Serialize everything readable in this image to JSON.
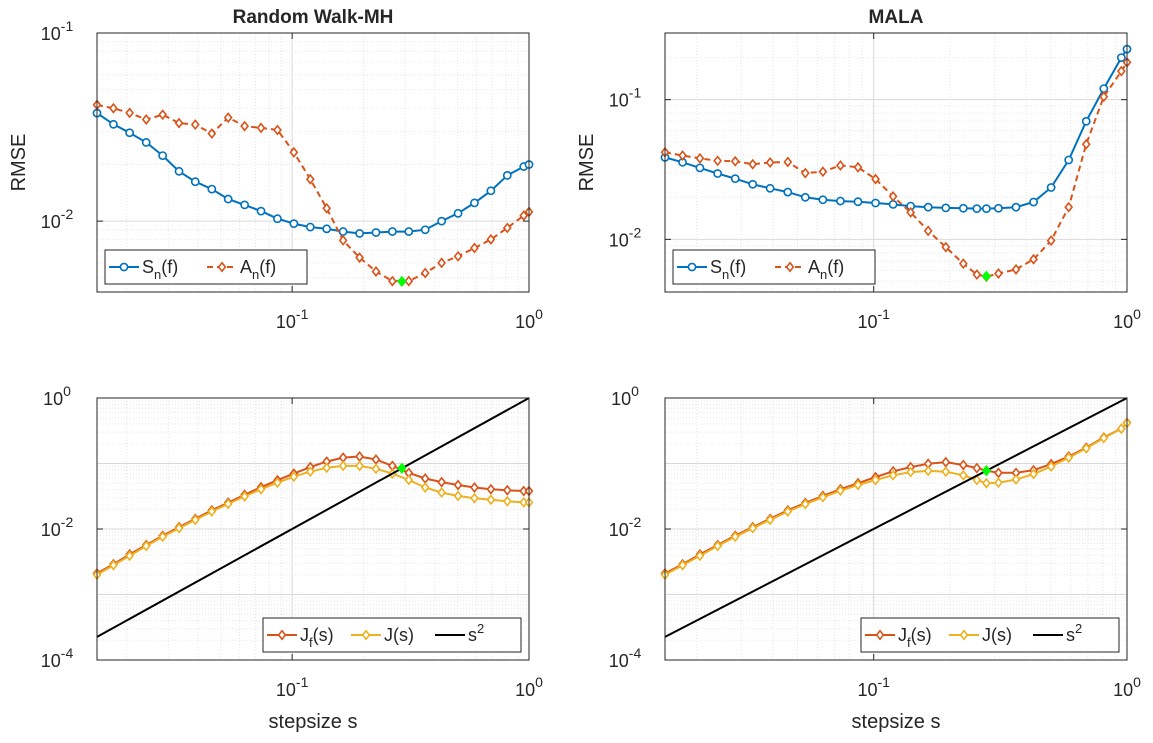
{
  "chart_data": [
    {
      "type": "line",
      "id": "rwmh_rmse",
      "title": "Random Walk-MH",
      "xlabel": "",
      "ylabel": "RMSE",
      "xscale": "log",
      "yscale": "log",
      "xlim": [
        0.015,
        1.0
      ],
      "ylim": [
        0.0042,
        0.1
      ],
      "xticks": [
        {
          "v": 0.1,
          "b": "10",
          "e": "-1"
        },
        {
          "v": 1,
          "b": "10",
          "e": "0"
        }
      ],
      "yticks": [
        {
          "v": 0.01,
          "b": "10",
          "e": "-2"
        },
        {
          "v": 0.1,
          "b": "10",
          "e": "-1"
        }
      ],
      "grid": true,
      "legend": {
        "placement": "bottom-left",
        "orientation": "horizontal"
      },
      "series": [
        {
          "name": "S_n(f)",
          "label_main": "S",
          "label_sub": "n",
          "label_tail": "(f)",
          "color": "#0072BD",
          "marker": "circle",
          "dash": false,
          "x": [
            0.015,
            0.0176,
            0.0206,
            0.0242,
            0.0284,
            0.0333,
            0.039,
            0.0458,
            0.0537,
            0.063,
            0.0739,
            0.0867,
            0.1017,
            0.1193,
            0.1399,
            0.1641,
            0.1926,
            0.2259,
            0.265,
            0.3108,
            0.3646,
            0.4277,
            0.5017,
            0.5885,
            0.6903,
            0.8098,
            0.95,
            1.0
          ],
          "y": [
            0.0375,
            0.0327,
            0.0295,
            0.0262,
            0.0223,
            0.0184,
            0.0162,
            0.0148,
            0.0131,
            0.0122,
            0.0113,
            0.0103,
            0.0097,
            0.0093,
            0.0091,
            0.0088,
            0.0086,
            0.0087,
            0.0088,
            0.0088,
            0.009,
            0.01,
            0.011,
            0.0125,
            0.0145,
            0.0175,
            0.0195,
            0.02
          ]
        },
        {
          "name": "A_n(f)",
          "label_main": "A",
          "label_sub": "n",
          "label_tail": "(f)",
          "color": "#D95319",
          "marker": "diamond",
          "dash": true,
          "x": [
            0.015,
            0.0176,
            0.0206,
            0.0242,
            0.0284,
            0.0333,
            0.039,
            0.0458,
            0.0537,
            0.063,
            0.0739,
            0.0867,
            0.1017,
            0.1193,
            0.1399,
            0.1641,
            0.1926,
            0.2259,
            0.265,
            0.3108,
            0.3646,
            0.4277,
            0.5017,
            0.5885,
            0.6903,
            0.8098,
            0.95,
            1.0
          ],
          "y": [
            0.0415,
            0.0398,
            0.0376,
            0.0347,
            0.0368,
            0.0332,
            0.0326,
            0.0292,
            0.0355,
            0.032,
            0.0313,
            0.0305,
            0.0232,
            0.0167,
            0.0117,
            0.0079,
            0.0064,
            0.0054,
            0.0048,
            0.0048,
            0.0053,
            0.006,
            0.0065,
            0.0072,
            0.008,
            0.0092,
            0.0107,
            0.0112
          ]
        }
      ],
      "highlight": {
        "x": 0.2906,
        "y": 0.00478,
        "color": "#00FF00"
      }
    },
    {
      "type": "line",
      "id": "mala_rmse",
      "title": "MALA",
      "xlabel": "",
      "ylabel": "RMSE",
      "xscale": "log",
      "yscale": "log",
      "xlim": [
        0.015,
        1.0
      ],
      "ylim": [
        0.0042,
        0.3
      ],
      "xticks": [
        {
          "v": 0.1,
          "b": "10",
          "e": "-1"
        },
        {
          "v": 1,
          "b": "10",
          "e": "0"
        }
      ],
      "yticks": [
        {
          "v": 0.01,
          "b": "10",
          "e": "-2"
        },
        {
          "v": 0.1,
          "b": "10",
          "e": "-1"
        }
      ],
      "grid": true,
      "legend": {
        "placement": "bottom-left",
        "orientation": "horizontal"
      },
      "series": [
        {
          "name": "S_n(f)",
          "label_main": "S",
          "label_sub": "n",
          "label_tail": "(f)",
          "color": "#0072BD",
          "marker": "circle",
          "dash": false,
          "x": [
            0.015,
            0.0176,
            0.0206,
            0.0242,
            0.0284,
            0.0333,
            0.039,
            0.0458,
            0.0537,
            0.063,
            0.0739,
            0.0867,
            0.1017,
            0.1193,
            0.1399,
            0.1641,
            0.1926,
            0.2259,
            0.2554,
            0.2786,
            0.3108,
            0.3646,
            0.4277,
            0.5017,
            0.5885,
            0.6903,
            0.8098,
            0.95,
            1.0
          ],
          "y": [
            0.0386,
            0.0356,
            0.0325,
            0.0296,
            0.0272,
            0.0248,
            0.0232,
            0.0218,
            0.02,
            0.0192,
            0.0188,
            0.0186,
            0.0182,
            0.0178,
            0.0173,
            0.017,
            0.0168,
            0.0167,
            0.0166,
            0.0166,
            0.0167,
            0.017,
            0.0185,
            0.0235,
            0.037,
            0.07,
            0.12,
            0.2,
            0.23
          ]
        },
        {
          "name": "A_n(f)",
          "label_main": "A",
          "label_sub": "n",
          "label_tail": "(f)",
          "color": "#D95319",
          "marker": "diamond",
          "dash": true,
          "x": [
            0.015,
            0.0176,
            0.0206,
            0.0242,
            0.0284,
            0.0333,
            0.039,
            0.0458,
            0.0537,
            0.063,
            0.0739,
            0.0867,
            0.1017,
            0.1193,
            0.1399,
            0.1641,
            0.1926,
            0.2259,
            0.2554,
            0.2786,
            0.3108,
            0.3646,
            0.4277,
            0.5017,
            0.5885,
            0.6903,
            0.8098,
            0.95,
            1.0
          ],
          "y": [
            0.042,
            0.0398,
            0.038,
            0.0365,
            0.0362,
            0.0345,
            0.0355,
            0.0358,
            0.0298,
            0.0305,
            0.0338,
            0.0328,
            0.027,
            0.0203,
            0.0156,
            0.0115,
            0.0088,
            0.0067,
            0.0056,
            0.0054,
            0.0057,
            0.0061,
            0.0072,
            0.0098,
            0.017,
            0.048,
            0.105,
            0.16,
            0.185
          ]
        }
      ],
      "highlight": {
        "x": 0.2786,
        "y": 0.00545,
        "color": "#00FF00"
      }
    },
    {
      "type": "line",
      "id": "rwmh_j",
      "title": "",
      "xlabel": "stepsize s",
      "ylabel": "",
      "xscale": "log",
      "yscale": "log",
      "xlim": [
        0.015,
        1.0
      ],
      "ylim": [
        0.0001,
        1.0
      ],
      "xticks": [
        {
          "v": 0.1,
          "b": "10",
          "e": "-1"
        },
        {
          "v": 1,
          "b": "10",
          "e": "0"
        }
      ],
      "yticks": [
        {
          "v": 0.0001,
          "b": "10",
          "e": "-4"
        },
        {
          "v": 0.01,
          "b": "10",
          "e": "-2"
        },
        {
          "v": 1,
          "b": "10",
          "e": "0"
        }
      ],
      "grid": true,
      "legend": {
        "placement": "bottom-right",
        "orientation": "horizontal"
      },
      "series": [
        {
          "name": "J_f(s)",
          "label_main": "J",
          "label_sub": "f",
          "label_tail": "(s)",
          "color": "#D95319",
          "marker": "diamond",
          "dash": false,
          "x": [
            0.015,
            0.0176,
            0.0206,
            0.0242,
            0.0284,
            0.0333,
            0.039,
            0.0458,
            0.0537,
            0.063,
            0.0739,
            0.0867,
            0.1017,
            0.1193,
            0.1399,
            0.1641,
            0.1926,
            0.2259,
            0.265,
            0.3108,
            0.3646,
            0.4277,
            0.5017,
            0.5885,
            0.6903,
            0.8098,
            0.95,
            1.0
          ],
          "y": [
            0.0021,
            0.0029,
            0.0041,
            0.0057,
            0.0079,
            0.0107,
            0.0143,
            0.0193,
            0.0253,
            0.0333,
            0.0435,
            0.0555,
            0.07,
            0.088,
            0.107,
            0.123,
            0.128,
            0.115,
            0.092,
            0.072,
            0.059,
            0.052,
            0.047,
            0.043,
            0.0405,
            0.039,
            0.038,
            0.038
          ]
        },
        {
          "name": "J(s)",
          "label_main": "J",
          "label_sub": "",
          "label_tail": "(s)",
          "color": "#EDB120",
          "marker": "diamond",
          "dash": false,
          "x": [
            0.015,
            0.0176,
            0.0206,
            0.0242,
            0.0284,
            0.0333,
            0.039,
            0.0458,
            0.0537,
            0.063,
            0.0739,
            0.0867,
            0.1017,
            0.1193,
            0.1399,
            0.1641,
            0.1926,
            0.2259,
            0.265,
            0.3108,
            0.3646,
            0.4277,
            0.5017,
            0.5885,
            0.6903,
            0.8098,
            0.95,
            1.0
          ],
          "y": [
            0.002,
            0.0028,
            0.0039,
            0.0055,
            0.0076,
            0.0103,
            0.0138,
            0.0185,
            0.0242,
            0.0315,
            0.0405,
            0.051,
            0.063,
            0.075,
            0.086,
            0.092,
            0.092,
            0.083,
            0.07,
            0.056,
            0.043,
            0.036,
            0.032,
            0.0295,
            0.028,
            0.0265,
            0.0255,
            0.0255
          ]
        },
        {
          "name": "s^2",
          "label_main": "s",
          "label_sup": "2",
          "label_tail": "",
          "color": "#000000",
          "marker": "none",
          "dash": false,
          "x": [
            0.015,
            1.0
          ],
          "y": [
            0.000225,
            1.0
          ]
        }
      ],
      "highlight": {
        "x": 0.2906,
        "y": 0.0845,
        "color": "#00FF00"
      }
    },
    {
      "type": "line",
      "id": "mala_j",
      "title": "",
      "xlabel": "stepsize s",
      "ylabel": "",
      "xscale": "log",
      "yscale": "log",
      "xlim": [
        0.015,
        1.0
      ],
      "ylim": [
        0.0001,
        1.0
      ],
      "xticks": [
        {
          "v": 0.1,
          "b": "10",
          "e": "-1"
        },
        {
          "v": 1,
          "b": "10",
          "e": "0"
        }
      ],
      "yticks": [
        {
          "v": 0.0001,
          "b": "10",
          "e": "-4"
        },
        {
          "v": 0.01,
          "b": "10",
          "e": "-2"
        },
        {
          "v": 1,
          "b": "10",
          "e": "0"
        }
      ],
      "grid": true,
      "legend": {
        "placement": "bottom-right",
        "orientation": "horizontal"
      },
      "series": [
        {
          "name": "J_f(s)",
          "label_main": "J",
          "label_sub": "f",
          "label_tail": "(s)",
          "color": "#D95319",
          "marker": "diamond",
          "dash": false,
          "x": [
            0.015,
            0.0176,
            0.0206,
            0.0242,
            0.0284,
            0.0333,
            0.039,
            0.0458,
            0.0537,
            0.063,
            0.0739,
            0.0867,
            0.1017,
            0.1193,
            0.1399,
            0.1641,
            0.1926,
            0.2259,
            0.2554,
            0.2786,
            0.3108,
            0.3646,
            0.4277,
            0.5017,
            0.5885,
            0.6903,
            0.8098,
            0.95,
            1.0
          ],
          "y": [
            0.0021,
            0.0029,
            0.0041,
            0.0057,
            0.0079,
            0.0107,
            0.0143,
            0.0193,
            0.025,
            0.032,
            0.0405,
            0.05,
            0.062,
            0.076,
            0.088,
            0.099,
            0.105,
            0.095,
            0.085,
            0.078,
            0.072,
            0.072,
            0.079,
            0.098,
            0.128,
            0.175,
            0.25,
            0.34,
            0.42
          ]
        },
        {
          "name": "J(s)",
          "label_main": "J",
          "label_sub": "",
          "label_tail": "(s)",
          "color": "#EDB120",
          "marker": "diamond",
          "dash": false,
          "x": [
            0.015,
            0.0176,
            0.0206,
            0.0242,
            0.0284,
            0.0333,
            0.039,
            0.0458,
            0.0537,
            0.063,
            0.0739,
            0.0867,
            0.1017,
            0.1193,
            0.1399,
            0.1641,
            0.1926,
            0.2259,
            0.2554,
            0.2786,
            0.3108,
            0.3646,
            0.4277,
            0.5017,
            0.5885,
            0.6903,
            0.8098,
            0.95,
            1.0
          ],
          "y": [
            0.002,
            0.0028,
            0.0039,
            0.0055,
            0.0076,
            0.0103,
            0.0138,
            0.0185,
            0.024,
            0.0305,
            0.0385,
            0.047,
            0.056,
            0.066,
            0.074,
            0.077,
            0.075,
            0.066,
            0.056,
            0.05,
            0.051,
            0.057,
            0.069,
            0.09,
            0.123,
            0.17,
            0.245,
            0.34,
            0.415
          ]
        },
        {
          "name": "s^2",
          "label_main": "s",
          "label_sup": "2",
          "label_tail": "",
          "color": "#000000",
          "marker": "none",
          "dash": false,
          "x": [
            0.015,
            1.0
          ],
          "y": [
            0.000225,
            1.0
          ]
        }
      ],
      "highlight": {
        "x": 0.2786,
        "y": 0.0776,
        "color": "#00FF00"
      }
    }
  ]
}
